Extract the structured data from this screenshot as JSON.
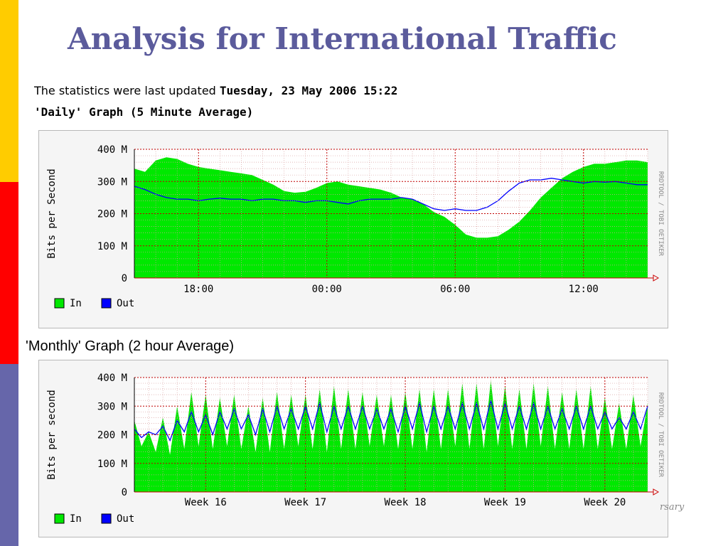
{
  "slide": {
    "title": "Analysis for International Traffic",
    "updated_prefix": "The statistics were last updated",
    "updated_value": "Tuesday, 23 May 2006 15:22",
    "watermark": "rsary",
    "colors": {
      "in": "#00e800",
      "out": "#0000ff",
      "grid": "#c00000",
      "title": "#5b5b9c"
    }
  },
  "chart_data": [
    {
      "type": "area",
      "title": "'Daily' Graph (5 Minute Average)",
      "ylabel": "Bits per Second",
      "side_label": "RRDTOOL / TOBI OETIKER",
      "xlim": [
        0,
        24
      ],
      "ylim": [
        0,
        400
      ],
      "y_ticks": [
        0,
        100,
        200,
        300,
        400
      ],
      "y_tick_labels": [
        "0",
        "100 M",
        "200 M",
        "300 M",
        "400 M"
      ],
      "x_ticks": [
        3,
        9,
        15,
        21
      ],
      "x_tick_labels": [
        "18:00",
        "00:00",
        "06:00",
        "12:00"
      ],
      "grid": true,
      "legend": [
        "In",
        "Out"
      ],
      "x": [
        0,
        0.5,
        1,
        1.5,
        2,
        2.5,
        3,
        3.5,
        4,
        4.5,
        5,
        5.5,
        6,
        6.5,
        7,
        7.5,
        8,
        8.5,
        9,
        9.5,
        10,
        10.5,
        11,
        11.5,
        12,
        12.5,
        13,
        13.5,
        14,
        14.5,
        15,
        15.5,
        16,
        16.5,
        17,
        17.5,
        18,
        18.5,
        19,
        19.5,
        20,
        20.5,
        21,
        21.5,
        22,
        22.5,
        23,
        23.5,
        24
      ],
      "series": [
        {
          "name": "In",
          "values": [
            340,
            330,
            365,
            375,
            370,
            355,
            345,
            340,
            335,
            330,
            325,
            320,
            305,
            290,
            270,
            265,
            268,
            280,
            295,
            300,
            290,
            285,
            280,
            275,
            265,
            250,
            245,
            230,
            205,
            190,
            165,
            135,
            125,
            125,
            130,
            150,
            175,
            210,
            250,
            280,
            310,
            330,
            345,
            355,
            355,
            360,
            365,
            365,
            360
          ]
        },
        {
          "name": "Out",
          "values": [
            285,
            275,
            260,
            250,
            245,
            245,
            240,
            245,
            248,
            245,
            245,
            240,
            245,
            245,
            240,
            240,
            235,
            240,
            240,
            235,
            230,
            240,
            245,
            245,
            245,
            250,
            245,
            230,
            215,
            210,
            215,
            210,
            210,
            220,
            240,
            270,
            295,
            305,
            305,
            310,
            305,
            300,
            295,
            300,
            298,
            300,
            295,
            290,
            290
          ]
        }
      ]
    },
    {
      "type": "area",
      "title": "'Monthly' Graph (2 hour Average)",
      "ylabel": "Bits per second",
      "side_label": "RRDTOOL / TOBI OETIKER",
      "xlim": [
        0,
        36
      ],
      "ylim": [
        0,
        400
      ],
      "y_ticks": [
        0,
        100,
        200,
        300,
        400
      ],
      "y_tick_labels": [
        "0",
        "100 M",
        "200 M",
        "300 M",
        "400 M"
      ],
      "x_ticks": [
        5,
        12,
        19,
        26,
        33
      ],
      "x_tick_labels": [
        "Week 16",
        "Week 17",
        "Week 18",
        "Week 19",
        "Week 20"
      ],
      "grid": true,
      "legend": [
        "In",
        "Out"
      ],
      "x": [
        0,
        0.5,
        1,
        1.5,
        2,
        2.5,
        3,
        3.5,
        4,
        4.5,
        5,
        5.5,
        6,
        6.5,
        7,
        7.5,
        8,
        8.5,
        9,
        9.5,
        10,
        10.5,
        11,
        11.5,
        12,
        12.5,
        13,
        13.5,
        14,
        14.5,
        15,
        15.5,
        16,
        16.5,
        17,
        17.5,
        18,
        18.5,
        19,
        19.5,
        20,
        20.5,
        21,
        21.5,
        22,
        22.5,
        23,
        23.5,
        24,
        24.5,
        25,
        25.5,
        26,
        26.5,
        27,
        27.5,
        28,
        28.5,
        29,
        29.5,
        30,
        30.5,
        31,
        31.5,
        32,
        32.5,
        33,
        33.5,
        34,
        34.5,
        35,
        35.5,
        36
      ],
      "series": [
        {
          "name": "In",
          "values": [
            250,
            160,
            210,
            140,
            260,
            130,
            300,
            150,
            350,
            160,
            340,
            150,
            330,
            160,
            340,
            150,
            300,
            140,
            330,
            140,
            350,
            150,
            340,
            160,
            340,
            150,
            360,
            140,
            370,
            150,
            360,
            150,
            350,
            160,
            340,
            160,
            340,
            150,
            350,
            150,
            360,
            140,
            360,
            150,
            360,
            160,
            380,
            150,
            380,
            150,
            390,
            160,
            370,
            150,
            360,
            150,
            380,
            160,
            370,
            150,
            350,
            150,
            360,
            150,
            370,
            150,
            330,
            150,
            310,
            150,
            340,
            160,
            310
          ]
        },
        {
          "name": "Out",
          "values": [
            220,
            190,
            210,
            200,
            230,
            180,
            250,
            210,
            280,
            210,
            270,
            200,
            280,
            220,
            290,
            220,
            270,
            200,
            290,
            210,
            300,
            220,
            290,
            220,
            300,
            220,
            310,
            210,
            300,
            220,
            300,
            220,
            300,
            220,
            290,
            220,
            290,
            210,
            300,
            220,
            310,
            210,
            300,
            220,
            300,
            220,
            310,
            220,
            310,
            220,
            320,
            220,
            310,
            220,
            300,
            220,
            310,
            220,
            300,
            220,
            290,
            220,
            300,
            220,
            300,
            220,
            280,
            220,
            260,
            220,
            280,
            220,
            300
          ]
        }
      ]
    }
  ]
}
